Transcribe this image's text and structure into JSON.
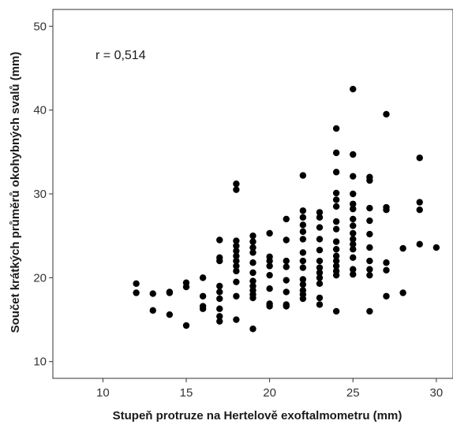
{
  "chart_data": {
    "type": "scatter",
    "title": "",
    "xlabel": "Stupeň protruze na Hertelově exoftalmometru (mm)",
    "ylabel": "Součet krátkých průměrů okohybných svalů (mm)",
    "xlim": [
      7,
      31
    ],
    "ylim": [
      8,
      52
    ],
    "xticks": [
      "10",
      "15",
      "20",
      "25",
      "30"
    ],
    "yticks": [
      "10",
      "20",
      "30",
      "40",
      "50"
    ],
    "annotation": "r = 0,514",
    "grid": false,
    "marker_color": "#000000",
    "points": [
      [
        12,
        19.3
      ],
      [
        12,
        18.2
      ],
      [
        13,
        18.1
      ],
      [
        13,
        16.1
      ],
      [
        14,
        18.3
      ],
      [
        14,
        18.2
      ],
      [
        14,
        15.6
      ],
      [
        15,
        19.4
      ],
      [
        15,
        18.9
      ],
      [
        15,
        14.3
      ],
      [
        16,
        20.0
      ],
      [
        16,
        17.8
      ],
      [
        16,
        16.6
      ],
      [
        16,
        16.3
      ],
      [
        17,
        24.5
      ],
      [
        17,
        22.4
      ],
      [
        17,
        22.0
      ],
      [
        17,
        19.0
      ],
      [
        17,
        18.3
      ],
      [
        17,
        17.5
      ],
      [
        17,
        16.3
      ],
      [
        17,
        15.4
      ],
      [
        17,
        14.8
      ],
      [
        18,
        31.2
      ],
      [
        18,
        30.5
      ],
      [
        18,
        24.4
      ],
      [
        18,
        23.8
      ],
      [
        18,
        23.2
      ],
      [
        18,
        22.6
      ],
      [
        18,
        22.0
      ],
      [
        18,
        21.4
      ],
      [
        18,
        20.8
      ],
      [
        18,
        19.5
      ],
      [
        18,
        17.8
      ],
      [
        18,
        15.0
      ],
      [
        19,
        25.0
      ],
      [
        19,
        24.3
      ],
      [
        19,
        23.6
      ],
      [
        19,
        23.0
      ],
      [
        19,
        21.8
      ],
      [
        19,
        20.6
      ],
      [
        19,
        19.6
      ],
      [
        19,
        19.0
      ],
      [
        19,
        18.5
      ],
      [
        19,
        18.0
      ],
      [
        19,
        17.6
      ],
      [
        19,
        13.9
      ],
      [
        20,
        25.3
      ],
      [
        20,
        22.5
      ],
      [
        20,
        22.0
      ],
      [
        20,
        21.4
      ],
      [
        20,
        20.3
      ],
      [
        20,
        18.7
      ],
      [
        20,
        16.9
      ],
      [
        20,
        16.6
      ],
      [
        21,
        27.0
      ],
      [
        21,
        24.5
      ],
      [
        21,
        22.0
      ],
      [
        21,
        21.3
      ],
      [
        21,
        19.7
      ],
      [
        21,
        18.3
      ],
      [
        21,
        16.8
      ],
      [
        21,
        16.6
      ],
      [
        22,
        32.2
      ],
      [
        22,
        28.0
      ],
      [
        22,
        27.2
      ],
      [
        22,
        26.3
      ],
      [
        22,
        25.5
      ],
      [
        22,
        24.6
      ],
      [
        22,
        23.0
      ],
      [
        22,
        22.0
      ],
      [
        22,
        21.2
      ],
      [
        22,
        19.8
      ],
      [
        22,
        19.2
      ],
      [
        22,
        18.5
      ],
      [
        22,
        18.0
      ],
      [
        22,
        17.5
      ],
      [
        23,
        27.8
      ],
      [
        23,
        27.2
      ],
      [
        23,
        26.0
      ],
      [
        23,
        24.6
      ],
      [
        23,
        23.3
      ],
      [
        23,
        22.0
      ],
      [
        23,
        21.2
      ],
      [
        23,
        20.6
      ],
      [
        23,
        20.0
      ],
      [
        23,
        19.3
      ],
      [
        23,
        17.6
      ],
      [
        23,
        16.8
      ],
      [
        24,
        37.8
      ],
      [
        24,
        34.9
      ],
      [
        24,
        32.6
      ],
      [
        24,
        30.1
      ],
      [
        24,
        29.3
      ],
      [
        24,
        28.5
      ],
      [
        24,
        26.7
      ],
      [
        24,
        25.8
      ],
      [
        24,
        24.3
      ],
      [
        24,
        23.4
      ],
      [
        24,
        22.6
      ],
      [
        24,
        22.0
      ],
      [
        24,
        21.4
      ],
      [
        24,
        20.8
      ],
      [
        24,
        20.3
      ],
      [
        24,
        16.0
      ],
      [
        25,
        42.5
      ],
      [
        25,
        34.7
      ],
      [
        25,
        32.1
      ],
      [
        25,
        30.0
      ],
      [
        25,
        28.8
      ],
      [
        25,
        28.2
      ],
      [
        25,
        27.0
      ],
      [
        25,
        26.2
      ],
      [
        25,
        25.3
      ],
      [
        25,
        24.6
      ],
      [
        25,
        24.0
      ],
      [
        25,
        23.4
      ],
      [
        25,
        22.4
      ],
      [
        25,
        21.0
      ],
      [
        25,
        20.4
      ],
      [
        26,
        32.0
      ],
      [
        26,
        31.6
      ],
      [
        26,
        28.3
      ],
      [
        26,
        26.8
      ],
      [
        26,
        25.2
      ],
      [
        26,
        23.6
      ],
      [
        26,
        22.0
      ],
      [
        26,
        21.0
      ],
      [
        26,
        20.3
      ],
      [
        26,
        16.0
      ],
      [
        27,
        39.5
      ],
      [
        27,
        28.4
      ],
      [
        27,
        28.1
      ],
      [
        27,
        21.8
      ],
      [
        27,
        20.9
      ],
      [
        27,
        17.8
      ],
      [
        28,
        23.5
      ],
      [
        28,
        18.2
      ],
      [
        29,
        34.3
      ],
      [
        29,
        29.0
      ],
      [
        29,
        28.1
      ],
      [
        29,
        24.0
      ],
      [
        30,
        23.6
      ]
    ]
  }
}
